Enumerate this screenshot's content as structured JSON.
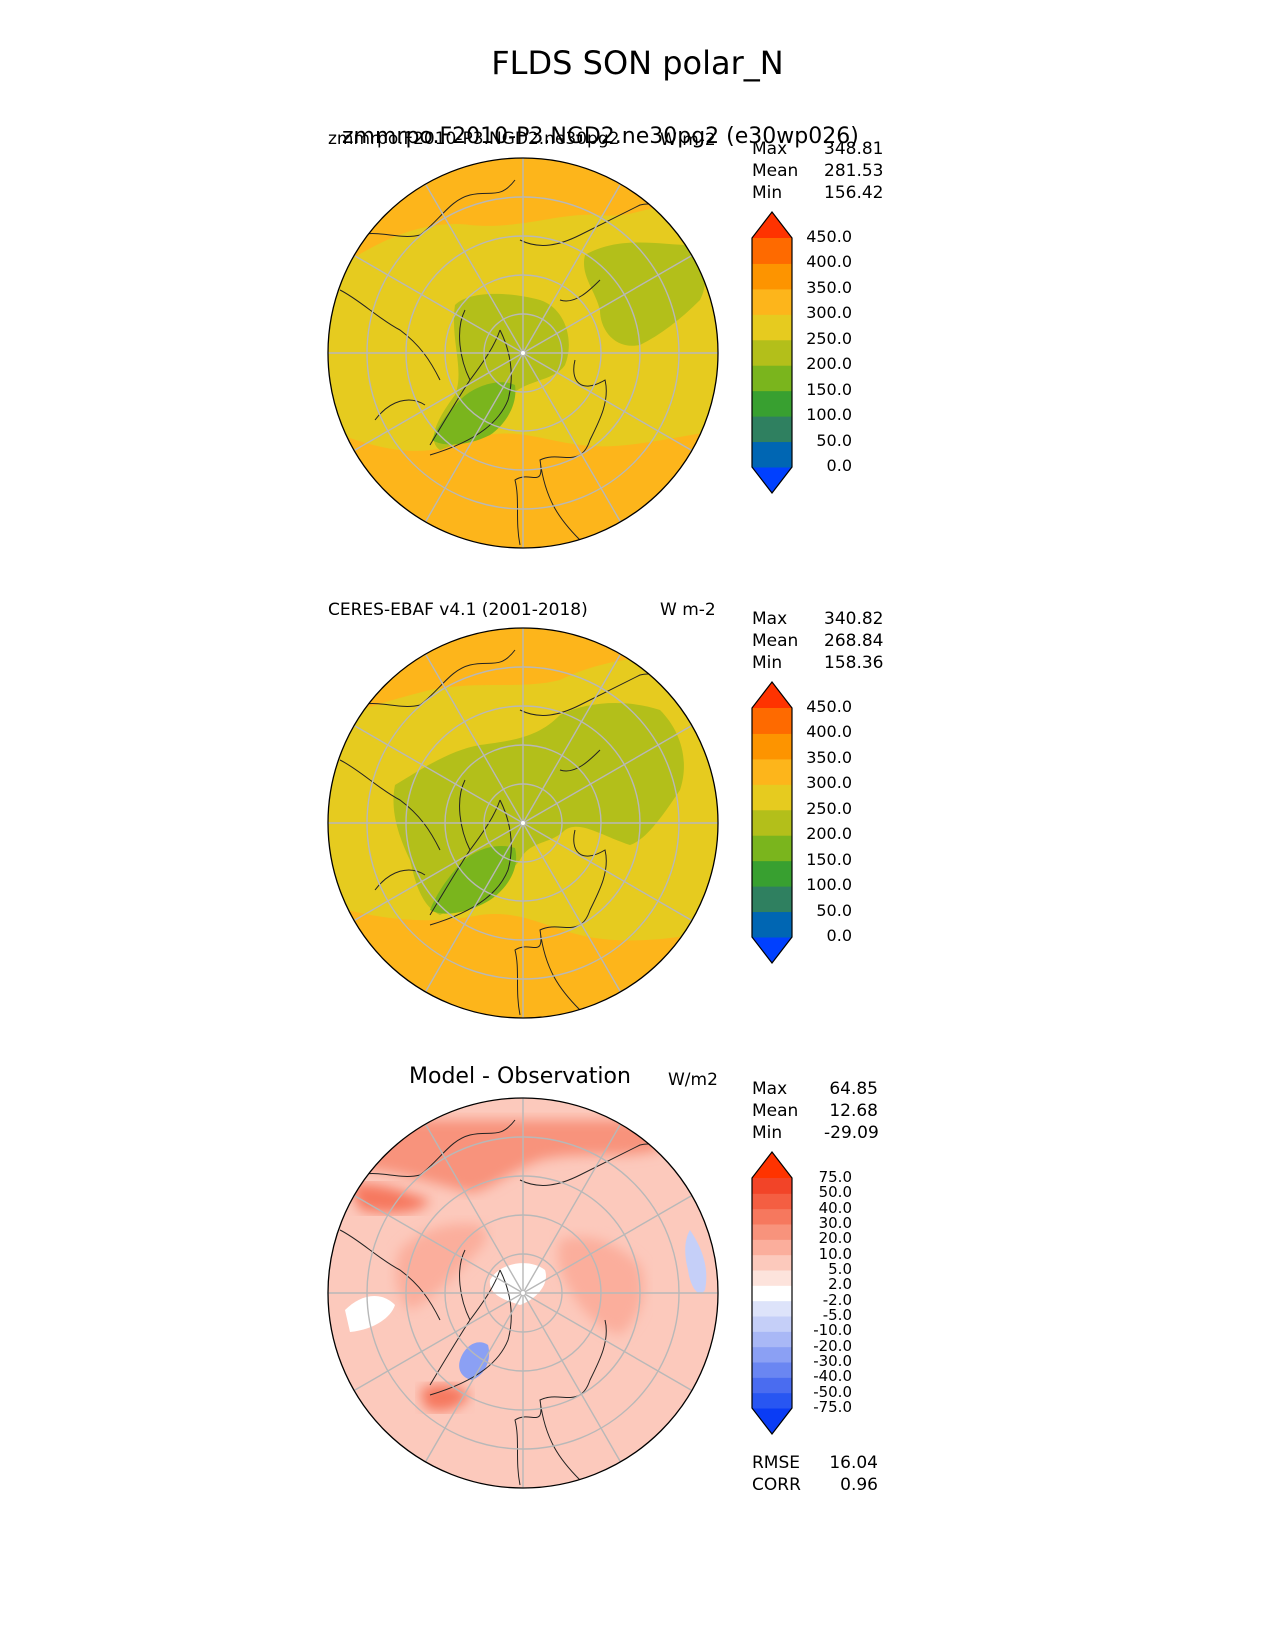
{
  "page": {
    "title": "FLDS SON polar_N"
  },
  "panels": [
    {
      "left_label_a": "zmmrpo.F2010-P3.NGD2.ne30pg2",
      "left_label_b": "zmmrpo.F2010-P3.NGD2.ne30pg2 (e30wp026)",
      "right_label": "W m-2",
      "stats": {
        "max_label": "Max",
        "max": "348.81",
        "mean_label": "Mean",
        "mean": "281.53",
        "min_label": "Min",
        "min": "156.42"
      },
      "ticks": [
        "450.0",
        "400.0",
        "350.0",
        "300.0",
        "250.0",
        "200.0",
        "150.0",
        "100.0",
        "50.0",
        "0.0"
      ]
    },
    {
      "left_label": "CERES-EBAF v4.1 (2001-2018)",
      "right_label": "W m-2",
      "stats": {
        "max_label": "Max",
        "max": "340.82",
        "mean_label": "Mean",
        "mean": "268.84",
        "min_label": "Min",
        "min": "158.36"
      },
      "ticks": [
        "450.0",
        "400.0",
        "350.0",
        "300.0",
        "250.0",
        "200.0",
        "150.0",
        "100.0",
        "50.0",
        "0.0"
      ]
    },
    {
      "title": "Model - Observation",
      "right_label": "W/m2",
      "stats": {
        "max_label": "Max",
        "max": "64.85",
        "mean_label": "Mean",
        "mean": "12.68",
        "min_label": "Min",
        "min": "-29.09"
      },
      "ticks": [
        "75.0",
        "50.0",
        "40.0",
        "30.0",
        "20.0",
        "10.0",
        "5.0",
        "2.0",
        "-2.0",
        "-5.0",
        "-10.0",
        "-20.0",
        "-30.0",
        "-40.0",
        "-50.0",
        "-75.0"
      ],
      "rmse_label": "RMSE",
      "rmse": "16.04",
      "corr_label": "CORR",
      "corr": "0.96"
    }
  ],
  "chart_data": [
    {
      "type": "heatmap",
      "title": "zmmrpo.F2010-P3.NGD2.ne30pg2 (e30wp026)",
      "projection": "north polar stereographic",
      "units": "W m-2",
      "stats": {
        "max": 348.81,
        "mean": 281.53,
        "min": 156.42
      },
      "colorbar_levels": [
        0,
        50,
        100,
        150,
        200,
        250,
        300,
        350,
        400,
        450
      ],
      "colorbar_colors": [
        "#0040ff",
        "#0066b3",
        "#2f8060",
        "#38a030",
        "#7ab51d",
        "#b3bf1a",
        "#e6cb1f",
        "#fdb51b",
        "#fd9400",
        "#fe6a00",
        "#ff3300"
      ]
    },
    {
      "type": "heatmap",
      "title": "CERES-EBAF v4.1 (2001-2018)",
      "projection": "north polar stereographic",
      "units": "W m-2",
      "stats": {
        "max": 340.82,
        "mean": 268.84,
        "min": 158.36
      },
      "colorbar_levels": [
        0,
        50,
        100,
        150,
        200,
        250,
        300,
        350,
        400,
        450
      ],
      "colorbar_colors": [
        "#0040ff",
        "#0066b3",
        "#2f8060",
        "#38a030",
        "#7ab51d",
        "#b3bf1a",
        "#e6cb1f",
        "#fdb51b",
        "#fd9400",
        "#fe6a00",
        "#ff3300"
      ]
    },
    {
      "type": "heatmap",
      "title": "Model - Observation",
      "projection": "north polar stereographic",
      "units": "W/m2",
      "stats": {
        "max": 64.85,
        "mean": 12.68,
        "min": -29.09,
        "rmse": 16.04,
        "corr": 0.96
      },
      "colorbar_levels": [
        -75,
        -50,
        -40,
        -30,
        -20,
        -10,
        -5,
        -2,
        2,
        5,
        10,
        20,
        30,
        40,
        50,
        75
      ],
      "colorbar_colors": [
        "#0a3cf5",
        "#2856f2",
        "#4a6cf0",
        "#6a86f2",
        "#8ba0f4",
        "#a9b8f6",
        "#c5cff8",
        "#dde3fa",
        "#ffffff",
        "#fde3dc",
        "#fcc9bc",
        "#fbae9c",
        "#f8937c",
        "#f6785e",
        "#f45e42",
        "#f24428",
        "#ff3300"
      ]
    }
  ]
}
